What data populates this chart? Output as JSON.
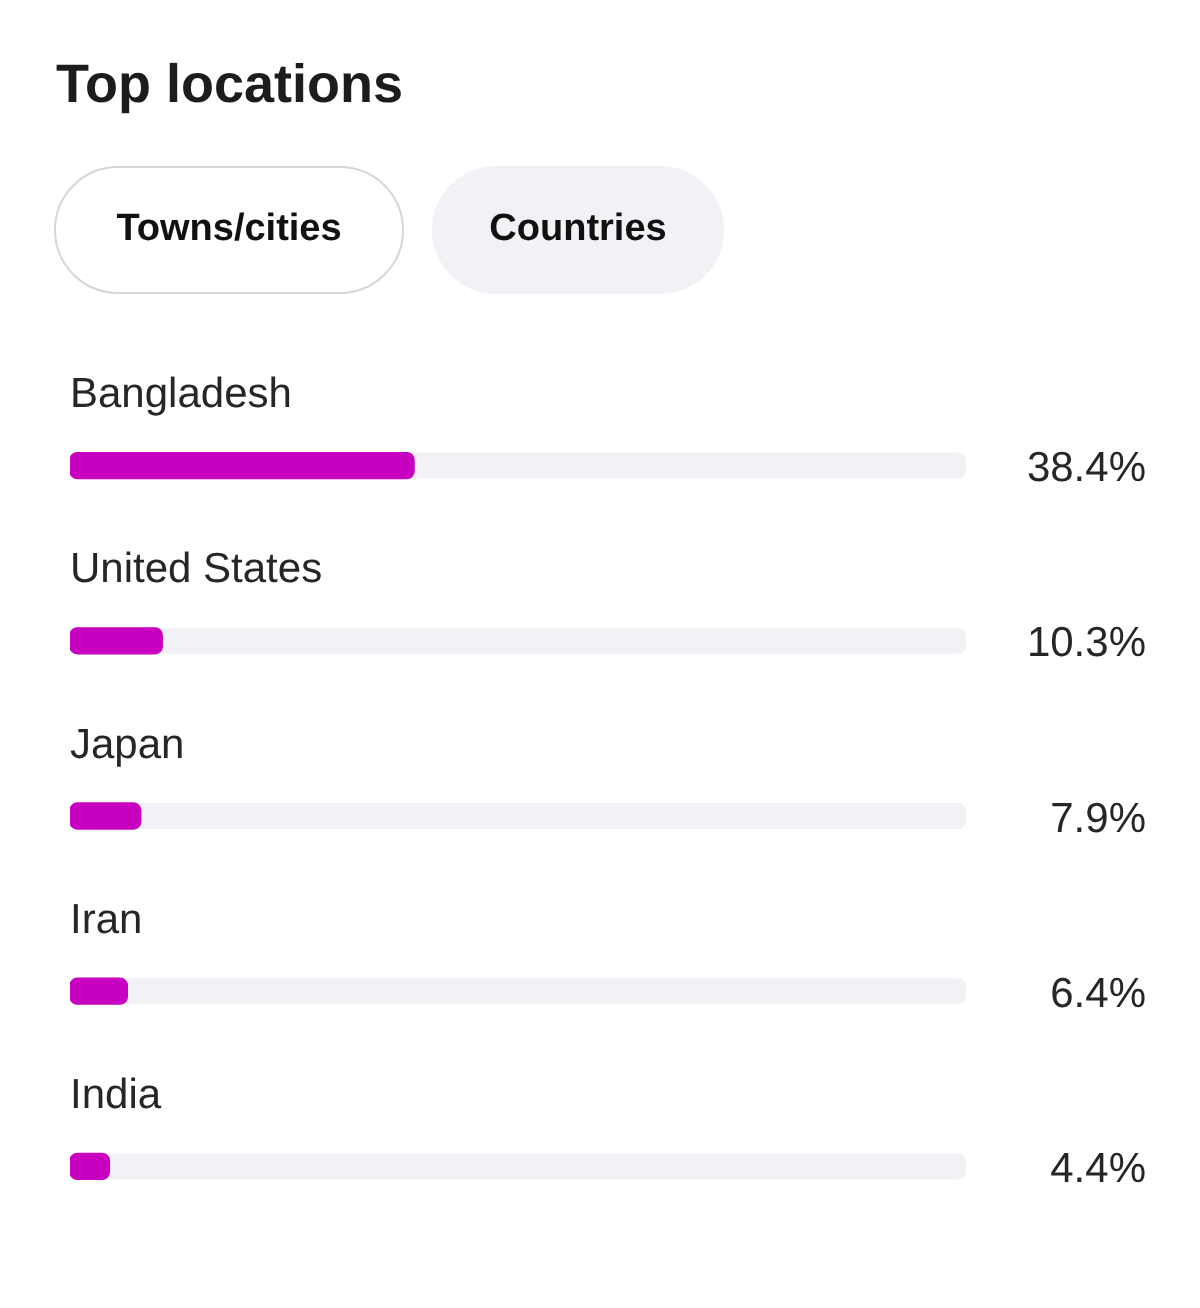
{
  "chart_data": {
    "type": "bar",
    "title": "Top locations",
    "annotations": [
      "Towns/cities",
      "Countries"
    ],
    "orientation": "horizontal",
    "categories": [
      "Bangladesh",
      "United States",
      "Japan",
      "Iran",
      "India"
    ],
    "values": [
      38.4,
      10.3,
      7.9,
      6.4,
      4.4
    ],
    "value_labels": [
      "38.4%",
      "10.3%",
      "7.9%",
      "6.4%",
      "4.4%"
    ],
    "color": "#c800c0",
    "xlim": [
      0,
      100
    ],
    "tick_labels": "y"
  }
}
